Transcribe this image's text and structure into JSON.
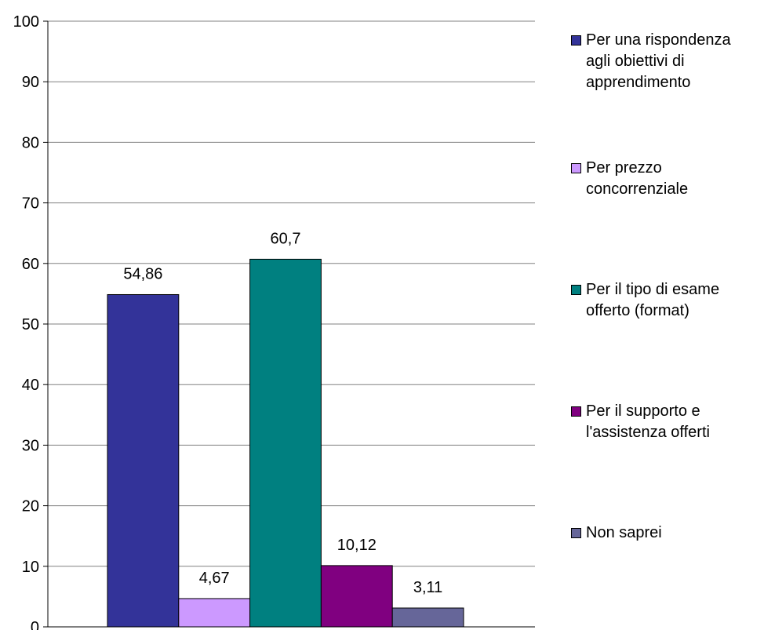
{
  "chart_data": {
    "type": "bar",
    "title": "",
    "xlabel": "",
    "ylabel": "",
    "ylim": [
      0,
      100
    ],
    "yticks": [
      "0",
      "10",
      "20",
      "30",
      "40",
      "50",
      "60",
      "70",
      "80",
      "90",
      "100"
    ],
    "grid": true,
    "legend_position": "right",
    "series": [
      {
        "name": "Per una rispondenza agli obiettivi di apprendimento",
        "value": 54.86,
        "label": "54,86",
        "color": "#333399"
      },
      {
        "name": "Per prezzo concorrenziale",
        "value": 4.67,
        "label": "4,67",
        "color": "#CC99FF"
      },
      {
        "name": "Per il tipo di esame offerto (format)",
        "value": 60.7,
        "label": "60,7",
        "color": "#008080"
      },
      {
        "name": "Per il supporto e l'assistenza offerti",
        "value": 10.12,
        "label": "10,12",
        "color": "#800080"
      },
      {
        "name": "Non saprei",
        "value": 3.11,
        "label": "3,11",
        "color": "#666699"
      }
    ]
  },
  "legend": {
    "items": [
      {
        "text": "Per una rispondenza\nagli obiettivi di\napprendimento"
      },
      {
        "text": "Per prezzo\nconcorrenziale"
      },
      {
        "text": "Per il tipo di esame\nofferto (format)"
      },
      {
        "text": "Per il supporto e\nl'assistenza offerti"
      },
      {
        "text": "Non saprei"
      }
    ]
  }
}
